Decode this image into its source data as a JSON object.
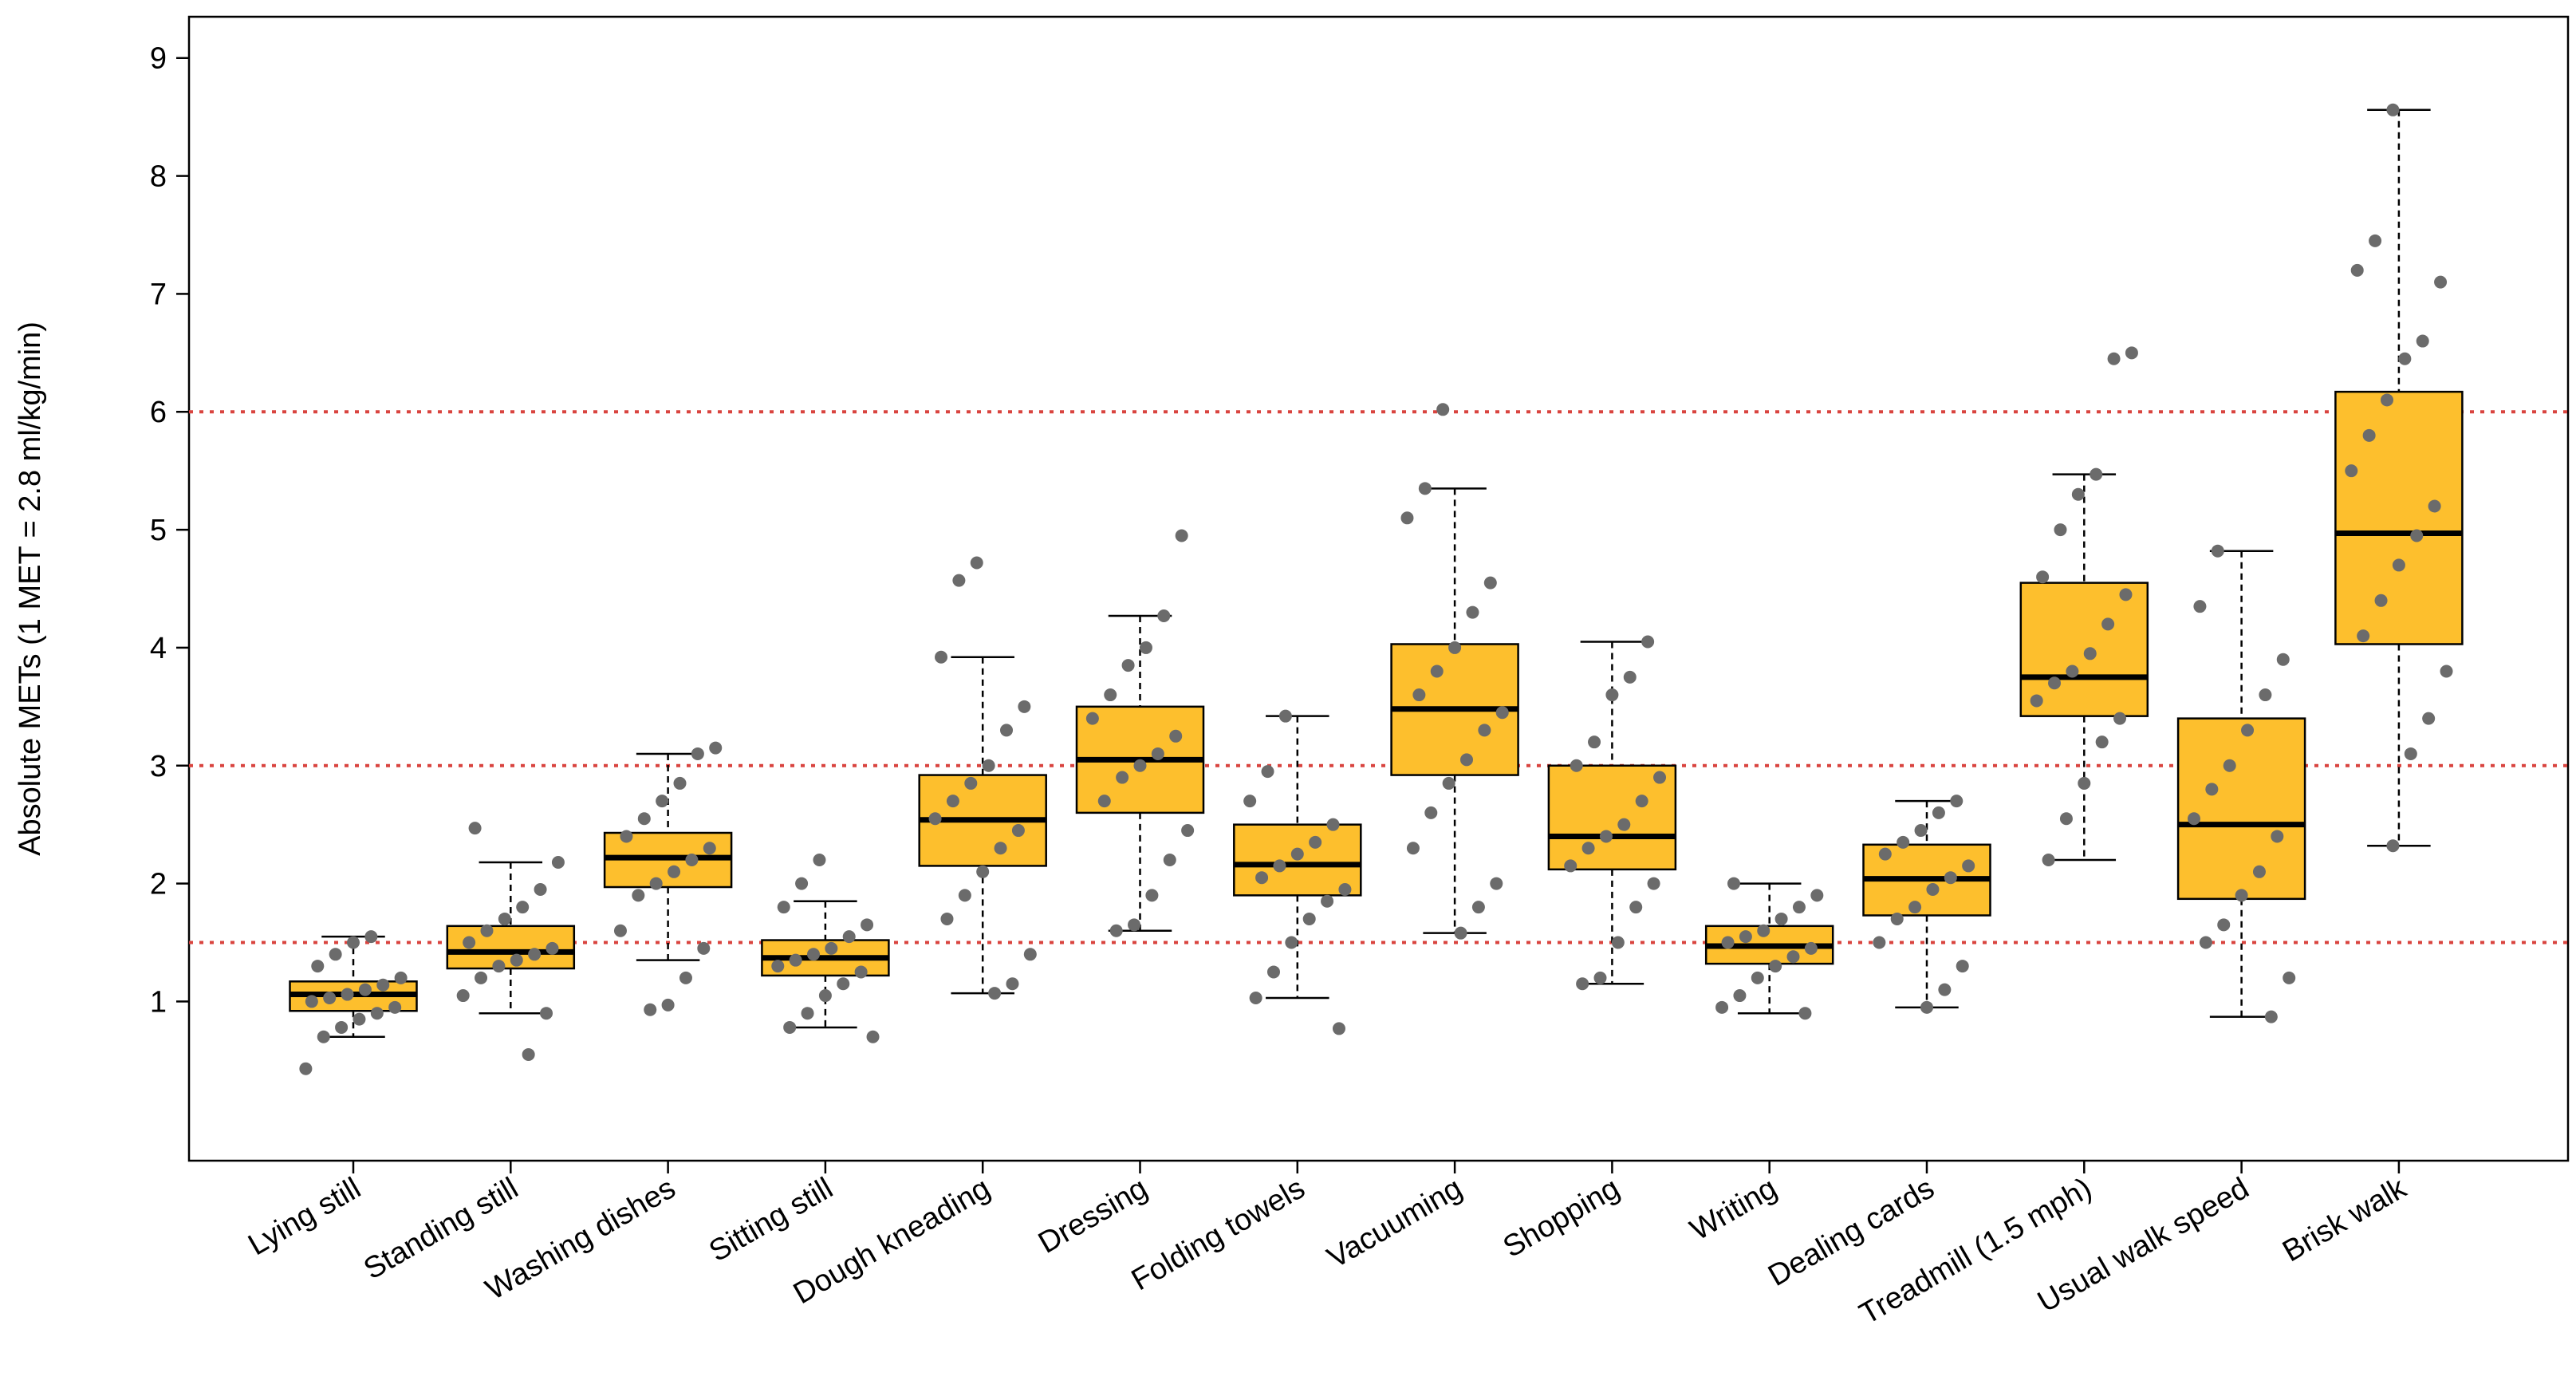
{
  "chart_data": {
    "type": "box",
    "y_label": "Absolute METs (1 MET = 2.8 ml/kg/min)",
    "categories": [
      "Lying still",
      "Standing still",
      "Washing dishes",
      "Sitting still",
      "Dough kneading",
      "Dressing",
      "Folding towels",
      "Vacuuming",
      "Shopping",
      "Writing",
      "Dealing cards",
      "Treadmill (1.5 mph)",
      "Usual walk speed",
      "Brisk walk"
    ],
    "boxes": [
      {
        "min": 0.7,
        "q1": 0.92,
        "median": 1.06,
        "q3": 1.17,
        "max": 1.55,
        "points": [
          0.43,
          0.7,
          0.78,
          0.85,
          0.9,
          0.95,
          1.0,
          1.03,
          1.06,
          1.1,
          1.14,
          1.2,
          1.3,
          1.4,
          1.5,
          1.55
        ]
      },
      {
        "min": 0.9,
        "q1": 1.28,
        "median": 1.42,
        "q3": 1.64,
        "max": 2.18,
        "points": [
          0.55,
          0.9,
          1.05,
          1.2,
          1.3,
          1.35,
          1.4,
          1.45,
          1.5,
          1.6,
          1.7,
          1.8,
          1.95,
          2.18,
          2.47
        ]
      },
      {
        "min": 1.35,
        "q1": 1.97,
        "median": 2.22,
        "q3": 2.43,
        "max": 3.1,
        "points": [
          0.93,
          0.97,
          1.2,
          1.45,
          1.6,
          1.9,
          2.0,
          2.1,
          2.2,
          2.3,
          2.4,
          2.55,
          2.7,
          2.85,
          3.1,
          3.15
        ]
      },
      {
        "min": 0.78,
        "q1": 1.22,
        "median": 1.37,
        "q3": 1.52,
        "max": 1.85,
        "points": [
          0.7,
          0.78,
          0.9,
          1.05,
          1.15,
          1.25,
          1.3,
          1.35,
          1.4,
          1.45,
          1.55,
          1.65,
          1.8,
          2.0,
          2.2
        ]
      },
      {
        "min": 1.07,
        "q1": 2.15,
        "median": 2.54,
        "q3": 2.92,
        "max": 3.92,
        "points": [
          1.07,
          1.15,
          1.4,
          1.7,
          1.9,
          2.1,
          2.3,
          2.45,
          2.55,
          2.7,
          2.85,
          3.0,
          3.3,
          3.5,
          3.92,
          4.57,
          4.72
        ]
      },
      {
        "min": 1.6,
        "q1": 2.6,
        "median": 3.05,
        "q3": 3.5,
        "max": 4.27,
        "points": [
          1.6,
          1.65,
          1.9,
          2.2,
          2.45,
          2.7,
          2.9,
          3.0,
          3.1,
          3.25,
          3.4,
          3.6,
          3.85,
          4.0,
          4.27,
          4.95
        ]
      },
      {
        "min": 1.03,
        "q1": 1.9,
        "median": 2.16,
        "q3": 2.5,
        "max": 3.42,
        "points": [
          0.77,
          1.03,
          1.25,
          1.5,
          1.7,
          1.85,
          1.95,
          2.05,
          2.15,
          2.25,
          2.35,
          2.5,
          2.7,
          2.95,
          3.42
        ]
      },
      {
        "min": 1.58,
        "q1": 2.92,
        "median": 3.48,
        "q3": 4.03,
        "max": 5.35,
        "points": [
          1.58,
          1.8,
          2.0,
          2.3,
          2.6,
          2.85,
          3.05,
          3.3,
          3.45,
          3.6,
          3.8,
          4.0,
          4.3,
          4.55,
          5.1,
          5.35,
          6.02
        ]
      },
      {
        "min": 1.15,
        "q1": 2.12,
        "median": 2.4,
        "q3": 3.0,
        "max": 4.05,
        "points": [
          1.15,
          1.2,
          1.5,
          1.8,
          2.0,
          2.15,
          2.3,
          2.4,
          2.5,
          2.7,
          2.9,
          3.0,
          3.2,
          3.6,
          3.75,
          4.05
        ]
      },
      {
        "min": 0.9,
        "q1": 1.32,
        "median": 1.47,
        "q3": 1.64,
        "max": 2.0,
        "points": [
          0.9,
          0.95,
          1.05,
          1.2,
          1.3,
          1.38,
          1.45,
          1.5,
          1.55,
          1.6,
          1.7,
          1.8,
          1.9,
          2.0
        ]
      },
      {
        "min": 0.95,
        "q1": 1.73,
        "median": 2.04,
        "q3": 2.33,
        "max": 2.7,
        "points": [
          0.95,
          1.1,
          1.3,
          1.5,
          1.7,
          1.8,
          1.95,
          2.05,
          2.15,
          2.25,
          2.35,
          2.45,
          2.6,
          2.7
        ]
      },
      {
        "min": 2.2,
        "q1": 3.42,
        "median": 3.75,
        "q3": 4.55,
        "max": 5.47,
        "points": [
          2.2,
          2.55,
          2.85,
          3.2,
          3.4,
          3.55,
          3.7,
          3.8,
          3.95,
          4.2,
          4.45,
          4.6,
          5.0,
          5.3,
          5.47,
          6.45,
          6.5
        ]
      },
      {
        "min": 0.87,
        "q1": 1.87,
        "median": 2.5,
        "q3": 3.4,
        "max": 4.82,
        "points": [
          0.87,
          1.2,
          1.5,
          1.65,
          1.9,
          2.1,
          2.4,
          2.55,
          2.8,
          3.0,
          3.3,
          3.6,
          3.9,
          4.35,
          4.82
        ]
      },
      {
        "min": 2.32,
        "q1": 4.03,
        "median": 4.97,
        "q3": 6.17,
        "max": 8.56,
        "points": [
          2.32,
          3.1,
          3.4,
          3.8,
          4.1,
          4.4,
          4.7,
          4.95,
          5.2,
          5.5,
          5.8,
          6.1,
          6.45,
          6.6,
          7.1,
          7.2,
          7.45,
          8.56
        ]
      }
    ],
    "color": "#fdbf2d",
    "point_color": "#6b6b6b",
    "reference_lines": [
      1.5,
      3,
      6
    ],
    "reference_color": "#d9443f",
    "ylim": [
      -0.35,
      9.35
    ],
    "yticks": [
      1,
      2,
      3,
      4,
      5,
      6,
      7,
      8,
      9
    ]
  }
}
